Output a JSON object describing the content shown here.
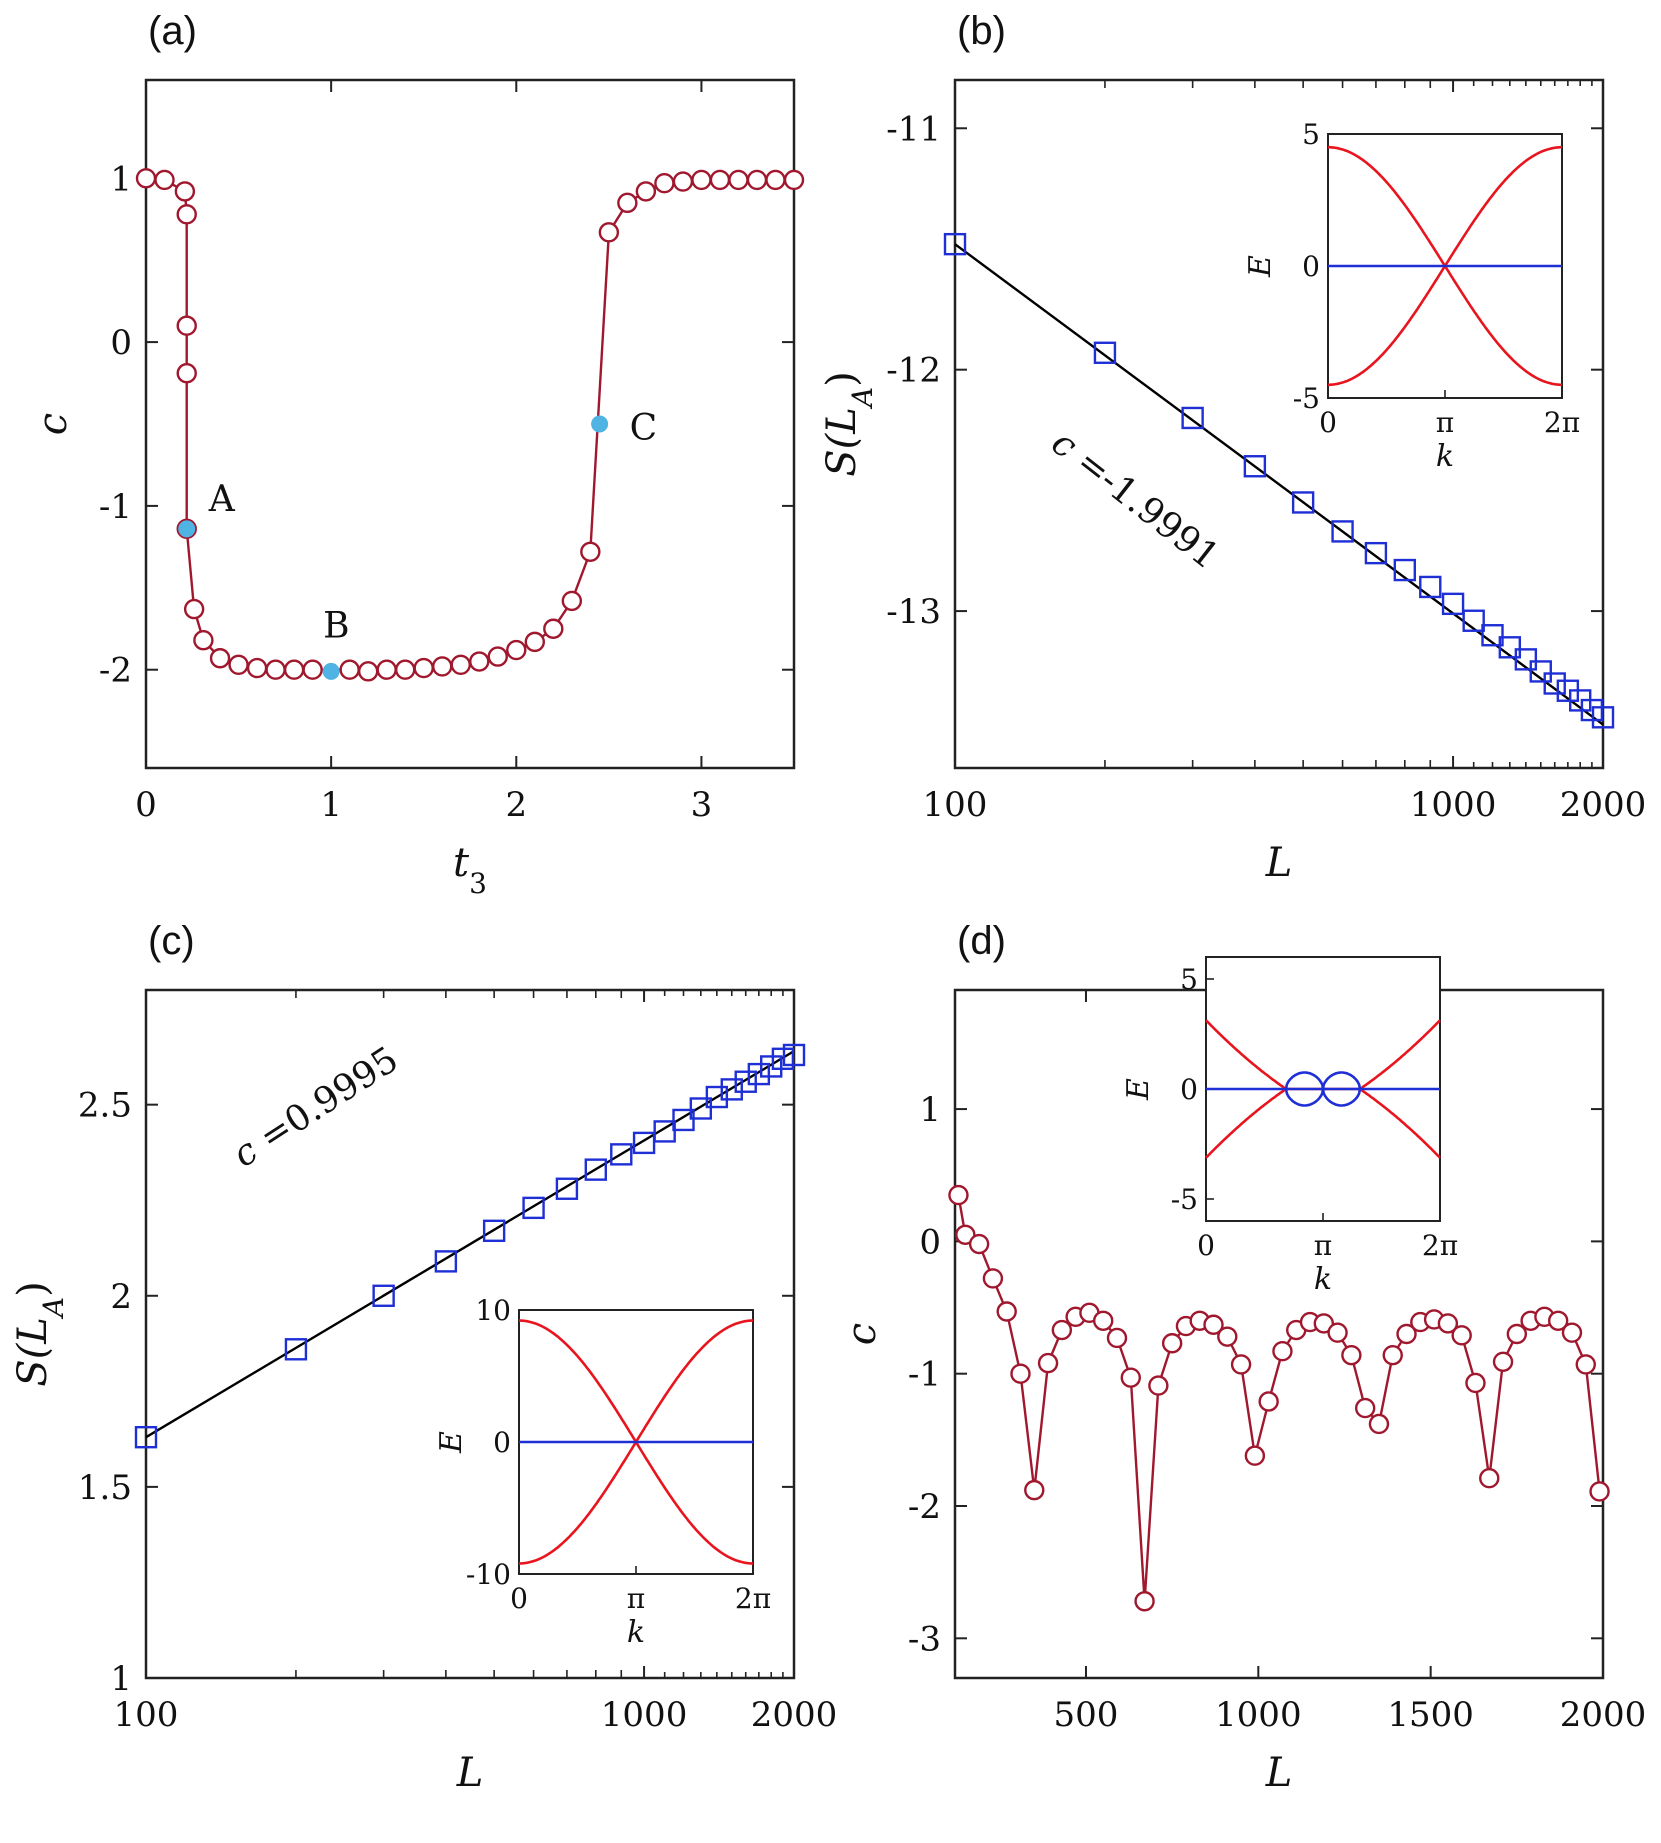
{
  "colors": {
    "marker_maroon": "#a0182e",
    "marker_blue": "#1f2fd6",
    "highlight": "#4fb3e3",
    "band_red": "#e8141e",
    "band_blue": "#1f2fd6",
    "fit_line": "#000000"
  },
  "chart_data": [
    {
      "id": "a",
      "type": "line",
      "panel_label": "(a)",
      "xlabel": "t",
      "xlabel_sub": "3",
      "ylabel": "c",
      "xlim": [
        0,
        3.5
      ],
      "ylim": [
        -2.6,
        1.6
      ],
      "xticks": [
        0,
        1,
        2,
        3
      ],
      "xtick_labels": [
        "0",
        "1",
        "2",
        "3"
      ],
      "yticks": [
        1,
        0,
        -1,
        -2
      ],
      "ytick_labels": [
        "1",
        "0",
        "-1",
        "-2"
      ],
      "series": [
        {
          "name": "c(t3)",
          "x": [
            0,
            0.1,
            0.21,
            0.22,
            0.22,
            0.22,
            0.22,
            0.26,
            0.31,
            0.4,
            0.5,
            0.6,
            0.7,
            0.8,
            0.9,
            1.1,
            1.2,
            1.3,
            1.4,
            1.5,
            1.6,
            1.7,
            1.8,
            1.9,
            2.0,
            2.1,
            2.2,
            2.3,
            2.4,
            2.5,
            2.6,
            2.7,
            2.8,
            2.9,
            3.0,
            3.1,
            3.2,
            3.3,
            3.4,
            3.5
          ],
          "y": [
            1.0,
            0.99,
            0.92,
            0.78,
            0.1,
            -0.19,
            -1.14,
            -1.63,
            -1.82,
            -1.93,
            -1.97,
            -1.99,
            -2.0,
            -2.0,
            -2.0,
            -2.0,
            -2.01,
            -2.0,
            -2.0,
            -1.99,
            -1.98,
            -1.97,
            -1.95,
            -1.92,
            -1.88,
            -1.83,
            -1.75,
            -1.58,
            -1.28,
            0.67,
            0.85,
            0.92,
            0.97,
            0.98,
            0.99,
            0.99,
            0.99,
            0.99,
            0.99,
            0.99
          ]
        }
      ],
      "highlights": [
        {
          "label": "A",
          "x": 0.22,
          "y": -1.14
        },
        {
          "label": "B",
          "x": 1.0,
          "y": -2.01
        },
        {
          "label": "C",
          "x": 2.45,
          "y": -0.5
        }
      ]
    },
    {
      "id": "b",
      "type": "scatter",
      "panel_label": "(b)",
      "xlabel": "L",
      "ylabel": "S(L",
      "ylabel_sub": "A",
      "ylabel_close": ")",
      "xscale": "log",
      "xlim": [
        100,
        2000
      ],
      "ylim": [
        -13.65,
        -10.8
      ],
      "xticks": [
        100,
        1000,
        2000
      ],
      "xtick_labels": [
        "100",
        "1000",
        "2000"
      ],
      "yticks": [
        -11,
        -12,
        -13
      ],
      "ytick_labels": [
        "-11",
        "-12",
        "-13"
      ],
      "series": [
        {
          "name": "S(L_A)",
          "x": [
            100,
            200,
            300,
            400,
            500,
            600,
            700,
            800,
            900,
            1000,
            1100,
            1200,
            1300,
            1400,
            1500,
            1600,
            1700,
            1800,
            1900,
            2000
          ],
          "y": [
            -11.48,
            -11.93,
            -12.2,
            -12.4,
            -12.55,
            -12.67,
            -12.76,
            -12.83,
            -12.9,
            -12.97,
            -13.04,
            -13.1,
            -13.15,
            -13.2,
            -13.25,
            -13.3,
            -13.33,
            -13.37,
            -13.41,
            -13.44
          ]
        }
      ],
      "fit": {
        "x": [
          100,
          2000
        ],
        "y": [
          -11.48,
          -13.47
        ],
        "label": "c =-1.9991"
      },
      "inset": {
        "xlabel": "k",
        "ylabel": "E",
        "xlim": [
          0,
          6.2832
        ],
        "ylim": [
          -5,
          5
        ],
        "xtick_labels": [
          "0",
          "π",
          "2π"
        ],
        "yticks": [
          5,
          0,
          -5
        ],
        "ytick_labels": [
          "5",
          "0",
          "-5"
        ],
        "amplitude": 4.5,
        "type": "cos"
      }
    },
    {
      "id": "c",
      "type": "scatter",
      "panel_label": "(c)",
      "xlabel": "L",
      "ylabel": "S(L",
      "ylabel_sub": "A",
      "ylabel_close": ")",
      "xscale": "log",
      "xlim": [
        100,
        2000
      ],
      "ylim": [
        1.0,
        2.8
      ],
      "xticks": [
        100,
        1000,
        2000
      ],
      "xtick_labels": [
        "100",
        "1000",
        "2000"
      ],
      "yticks": [
        1,
        1.5,
        2,
        2.5
      ],
      "ytick_labels": [
        "1",
        "1.5",
        "2",
        "2.5"
      ],
      "series": [
        {
          "name": "S(L_A)",
          "x": [
            100,
            200,
            300,
            400,
            500,
            600,
            700,
            800,
            900,
            1000,
            1100,
            1200,
            1300,
            1400,
            1500,
            1600,
            1700,
            1800,
            1900,
            2000
          ],
          "y": [
            1.63,
            1.86,
            2.0,
            2.09,
            2.17,
            2.23,
            2.28,
            2.33,
            2.37,
            2.4,
            2.43,
            2.46,
            2.49,
            2.52,
            2.54,
            2.56,
            2.58,
            2.6,
            2.62,
            2.63
          ]
        }
      ],
      "fit": {
        "x": [
          100,
          2000
        ],
        "y": [
          1.63,
          2.64
        ],
        "label": "c =0.9995"
      },
      "inset": {
        "xlabel": "k",
        "ylabel": "E",
        "xlim": [
          0,
          6.2832
        ],
        "ylim": [
          -10,
          10
        ],
        "xtick_labels": [
          "0",
          "π",
          "2π"
        ],
        "yticks": [
          10,
          0,
          -10
        ],
        "ytick_labels": [
          "10",
          "0",
          "-10"
        ],
        "amplitude": 9.2,
        "type": "cos"
      }
    },
    {
      "id": "d",
      "type": "line",
      "panel_label": "(d)",
      "xlabel": "L",
      "ylabel": "c",
      "xlim": [
        120,
        2000
      ],
      "ylim": [
        -3.3,
        1.9
      ],
      "xticks": [
        500,
        1000,
        1500,
        2000
      ],
      "xtick_labels": [
        "500",
        "1000",
        "1500",
        "2000"
      ],
      "yticks": [
        1,
        0,
        -1,
        -2,
        -3
      ],
      "ytick_labels": [
        "1",
        "0",
        "-1",
        "-2",
        "-3"
      ],
      "series": [
        {
          "name": "c(L)",
          "x": [
            130,
            150,
            190,
            230,
            270,
            310,
            350,
            390,
            430,
            470,
            510,
            550,
            590,
            630,
            670,
            710,
            750,
            790,
            830,
            870,
            910,
            950,
            990,
            1030,
            1070,
            1110,
            1150,
            1190,
            1230,
            1270,
            1310,
            1350,
            1390,
            1430,
            1470,
            1510,
            1550,
            1590,
            1630,
            1670,
            1710,
            1750,
            1790,
            1830,
            1870,
            1910,
            1950,
            1990
          ],
          "y": [
            0.35,
            0.05,
            -0.02,
            -0.28,
            -0.53,
            -1.0,
            -1.88,
            -0.92,
            -0.67,
            -0.57,
            -0.54,
            -0.6,
            -0.73,
            -1.03,
            -2.72,
            -1.09,
            -0.77,
            -0.64,
            -0.6,
            -0.63,
            -0.72,
            -0.93,
            -1.62,
            -1.21,
            -0.83,
            -0.67,
            -0.61,
            -0.62,
            -0.69,
            -0.86,
            -1.26,
            -1.38,
            -0.86,
            -0.7,
            -0.61,
            -0.59,
            -0.62,
            -0.71,
            -1.07,
            -1.79,
            -0.91,
            -0.7,
            -0.6,
            -0.57,
            -0.6,
            -0.69,
            -0.93,
            -1.89
          ]
        }
      ],
      "inset": {
        "xlabel": "k",
        "ylabel": "E",
        "xlim": [
          0,
          6.2832
        ],
        "ylim": [
          -6,
          6
        ],
        "xtick_labels": [
          "0",
          "π",
          "2π"
        ],
        "yticks": [
          5,
          0,
          -5
        ],
        "ytick_labels": [
          "5",
          "0",
          "-5"
        ],
        "amplitude": 2.5,
        "type": "loops"
      }
    }
  ]
}
